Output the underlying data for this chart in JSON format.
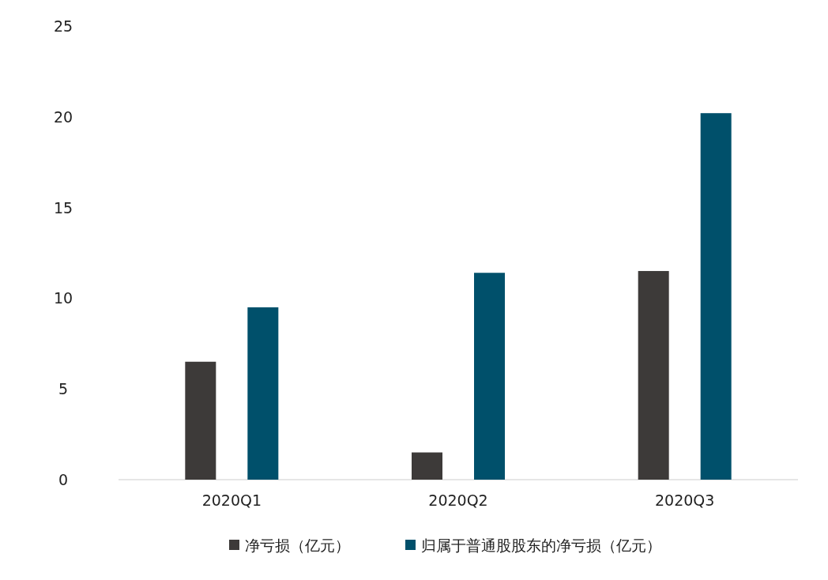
{
  "chart_data": {
    "type": "bar",
    "categories": [
      "2020Q1",
      "2020Q2",
      "2020Q3"
    ],
    "series": [
      {
        "name": "净亏损（亿元）",
        "color": "#3d3a39",
        "values": [
          6.5,
          1.5,
          11.5
        ]
      },
      {
        "name": "归属于普通股股东的净亏损（亿元）",
        "color": "#00506b",
        "values": [
          9.5,
          11.4,
          20.2
        ]
      }
    ],
    "ylim": [
      0,
      25
    ],
    "yticks": [
      0,
      5,
      10,
      15,
      20,
      25
    ],
    "grid": false,
    "legend": "bottom"
  }
}
